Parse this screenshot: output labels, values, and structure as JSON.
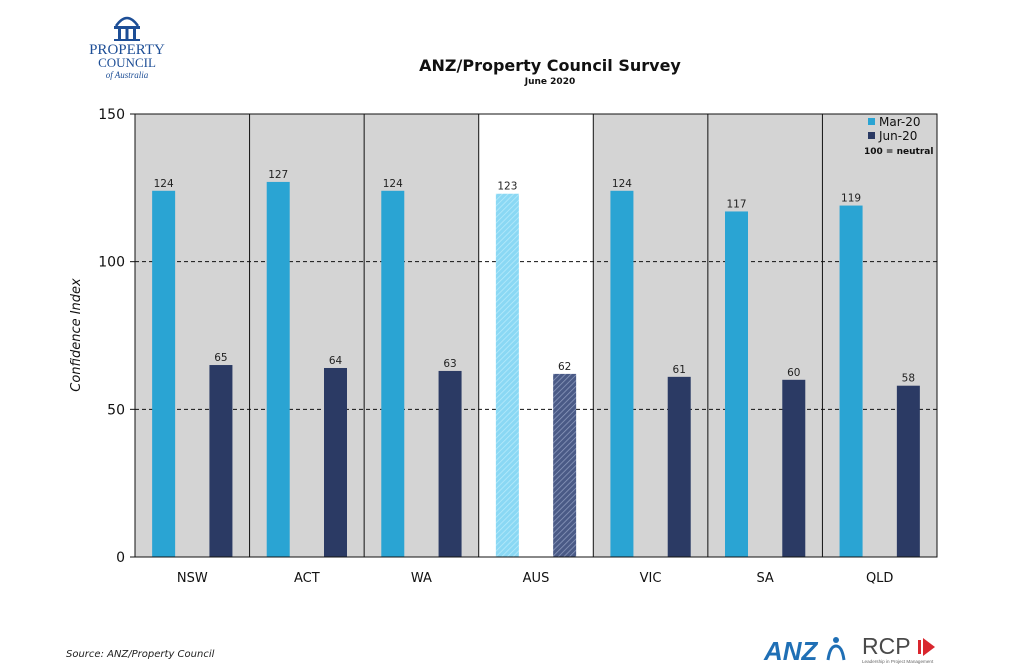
{
  "org": {
    "logo_line1": "PROPERTY",
    "logo_line2": "COUNCIL",
    "logo_line3": "of Australia"
  },
  "chart_data": {
    "type": "bar",
    "title": "ANZ/Property Council Survey",
    "subtitle": "June 2020",
    "ylabel": "Confidence Index",
    "xlabel": "",
    "ylim": [
      0,
      150
    ],
    "yticks": [
      0,
      50,
      100,
      150
    ],
    "grid": "dashed horizontal at 50 and 100",
    "legend_position": "top-right",
    "legend_note": "100 = neutral",
    "categories": [
      "NSW",
      "ACT",
      "WA",
      "AUS",
      "VIC",
      "SA",
      "QLD"
    ],
    "highlight_category": "AUS",
    "series": [
      {
        "name": "Mar-20",
        "values": [
          124,
          127,
          124,
          123,
          124,
          117,
          119
        ],
        "color": "#2aa4d3"
      },
      {
        "name": "Jun-20",
        "values": [
          65,
          64,
          63,
          62,
          61,
          60,
          58
        ],
        "color": "#2b3a64"
      }
    ],
    "colors": {
      "panel_bg": "#d4d4d4",
      "highlight_bg": "#ffffff",
      "highlight_mar": "#8ad8f4",
      "highlight_jun": "#4a5a86"
    }
  },
  "footer": {
    "source": "Source: ANZ/Property Council",
    "anz": "ANZ",
    "rcp": "RCP",
    "rcp_tagline": "Leadership in Project Management"
  }
}
